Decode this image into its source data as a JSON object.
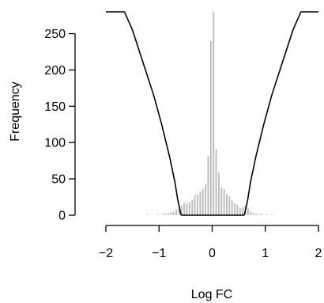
{
  "chart_data": {
    "type": "bar",
    "title": "",
    "xlabel": "Log FC",
    "ylabel": "Frequency",
    "xlim": [
      -2,
      2
    ],
    "ylim": [
      0,
      280
    ],
    "x_ticks": [
      -2,
      -1,
      0,
      1,
      2
    ],
    "y_ticks": [
      0,
      50,
      100,
      150,
      200,
      250
    ],
    "x_tick_labels": [
      "−2",
      "−1",
      "0",
      "1",
      "2"
    ],
    "y_tick_labels": [
      "0",
      "50",
      "100",
      "150",
      "200",
      "250"
    ],
    "bin_width": 0.05,
    "bins": [
      {
        "x": -1.225,
        "value": 1
      },
      {
        "x": -1.025,
        "value": 1
      },
      {
        "x": -0.925,
        "value": 2
      },
      {
        "x": -0.875,
        "value": 2
      },
      {
        "x": -0.825,
        "value": 3
      },
      {
        "x": -0.775,
        "value": 5
      },
      {
        "x": -0.725,
        "value": 5
      },
      {
        "x": -0.675,
        "value": 8
      },
      {
        "x": -0.625,
        "value": 9
      },
      {
        "x": -0.575,
        "value": 14
      },
      {
        "x": -0.525,
        "value": 17
      },
      {
        "x": -0.475,
        "value": 16
      },
      {
        "x": -0.425,
        "value": 18
      },
      {
        "x": -0.375,
        "value": 21
      },
      {
        "x": -0.325,
        "value": 28
      },
      {
        "x": -0.275,
        "value": 29
      },
      {
        "x": -0.225,
        "value": 33
      },
      {
        "x": -0.175,
        "value": 36
      },
      {
        "x": -0.125,
        "value": 43
      },
      {
        "x": -0.075,
        "value": 81
      },
      {
        "x": -0.025,
        "value": 240
      },
      {
        "x": 0.025,
        "value": 280
      },
      {
        "x": 0.075,
        "value": 91
      },
      {
        "x": 0.125,
        "value": 59
      },
      {
        "x": 0.175,
        "value": 38
      },
      {
        "x": 0.225,
        "value": 36
      },
      {
        "x": 0.275,
        "value": 29
      },
      {
        "x": 0.325,
        "value": 26
      },
      {
        "x": 0.375,
        "value": 20
      },
      {
        "x": 0.425,
        "value": 16
      },
      {
        "x": 0.475,
        "value": 14
      },
      {
        "x": 0.525,
        "value": 10
      },
      {
        "x": 0.575,
        "value": 11
      },
      {
        "x": 0.625,
        "value": 13
      },
      {
        "x": 0.675,
        "value": 10
      },
      {
        "x": 0.725,
        "value": 5
      },
      {
        "x": 0.775,
        "value": 3
      },
      {
        "x": 0.825,
        "value": 2
      },
      {
        "x": 0.875,
        "value": 2
      },
      {
        "x": 0.925,
        "value": 2
      },
      {
        "x": 1.025,
        "value": 1
      },
      {
        "x": 1.125,
        "value": 1
      }
    ],
    "threshold_curve": {
      "left": [
        [
          -2.0,
          280
        ],
        [
          -1.65,
          280
        ],
        [
          -1.5,
          255
        ],
        [
          -1.3,
          210
        ],
        [
          -1.1,
          165
        ],
        [
          -0.95,
          125
        ],
        [
          -0.8,
          80
        ],
        [
          -0.7,
          45
        ],
        [
          -0.65,
          22
        ],
        [
          -0.6,
          5
        ],
        [
          -0.585,
          0
        ]
      ],
      "right": [
        [
          0.605,
          0
        ],
        [
          0.62,
          5
        ],
        [
          0.67,
          22
        ],
        [
          0.72,
          45
        ],
        [
          0.82,
          80
        ],
        [
          0.97,
          125
        ],
        [
          1.12,
          165
        ],
        [
          1.32,
          210
        ],
        [
          1.52,
          255
        ],
        [
          1.67,
          280
        ],
        [
          2.0,
          280
        ]
      ],
      "baseline": [
        -0.585,
        0.605
      ]
    }
  }
}
